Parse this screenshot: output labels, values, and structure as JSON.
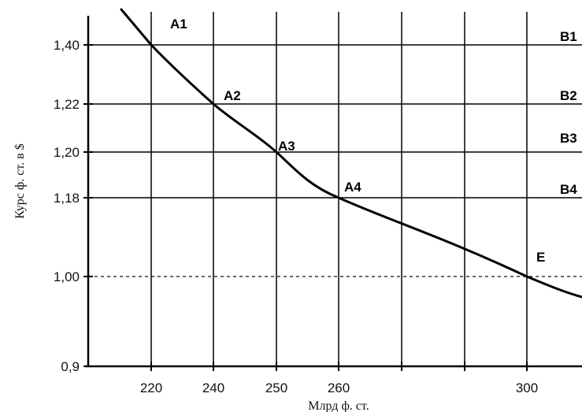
{
  "chart_data": {
    "type": "line",
    "title": "",
    "xlabel": "Млрд ф. ст.",
    "ylabel": "Курс ф. ст. в $",
    "x_ticks": [
      "220",
      "240",
      "250",
      "260",
      "300"
    ],
    "y_ticks": [
      "0,9",
      "1,00",
      "1,18",
      "1,20",
      "1,22",
      "1,40"
    ],
    "grid": true,
    "series": [
      {
        "name": "",
        "points": [
          {
            "x": 210,
            "y_tick": "above"
          },
          {
            "x": 220,
            "y": "1,40"
          },
          {
            "x": 240,
            "y": "1,22"
          },
          {
            "x": 250,
            "y": "1,20"
          },
          {
            "x": 260,
            "y": "1,18"
          },
          {
            "x": 300,
            "y": "1,00"
          }
        ]
      }
    ],
    "point_labels": [
      {
        "text": "A1"
      },
      {
        "text": "A2"
      },
      {
        "text": "A3"
      },
      {
        "text": "A4"
      },
      {
        "text": "E"
      }
    ],
    "level_labels": [
      {
        "text": "B1",
        "y": "1,40"
      },
      {
        "text": "B2",
        "y": "1,22"
      },
      {
        "text": "B3",
        "y": "1,20"
      },
      {
        "text": "B4",
        "y": "1,18"
      }
    ],
    "dashed_level": "1,00"
  }
}
